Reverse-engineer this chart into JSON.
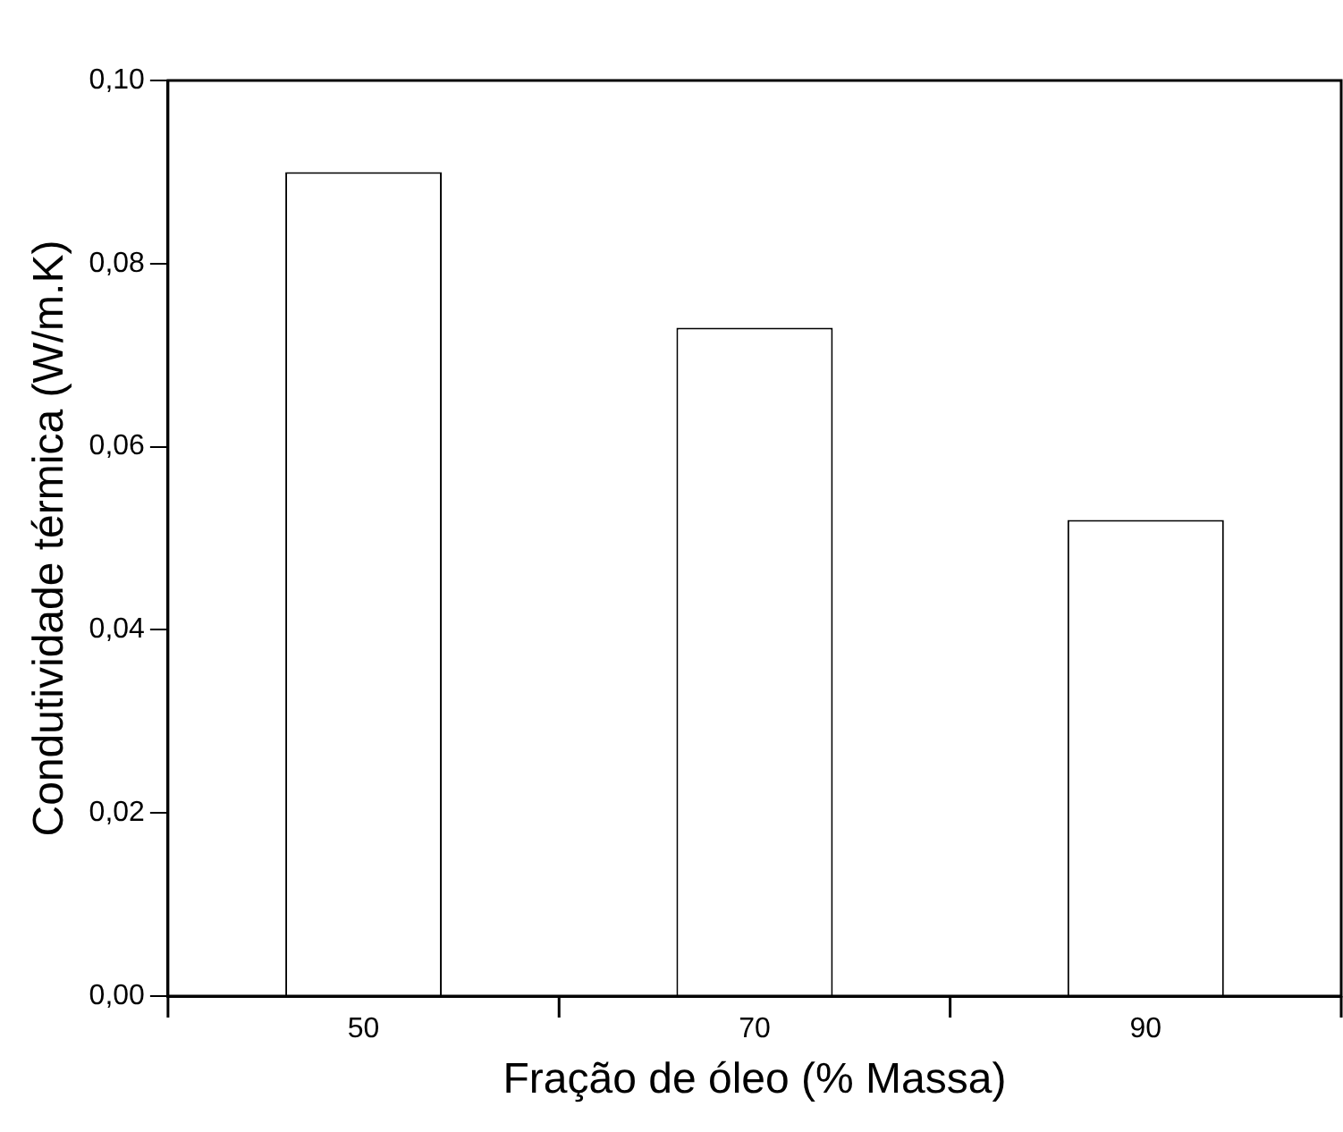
{
  "chart_data": {
    "type": "bar",
    "xlabel": "Fração de óleo (% Massa)",
    "ylabel": "Condutividade térmica (W/m.K)",
    "categories": [
      "50",
      "70",
      "90"
    ],
    "values": [
      0.09,
      0.073,
      0.052
    ],
    "color": "#ffffff",
    "ylim": [
      0,
      0.1
    ],
    "yticks": [
      {
        "value": 0,
        "label": "0,00"
      },
      {
        "value": 0.02,
        "label": "0,02"
      },
      {
        "value": 0.04,
        "label": "0,04"
      },
      {
        "value": 0.06,
        "label": "0,06"
      },
      {
        "value": 0.08,
        "label": "0,08"
      },
      {
        "value": 0.1,
        "label": "0,10"
      }
    ],
    "grid": false,
    "legend": false
  }
}
